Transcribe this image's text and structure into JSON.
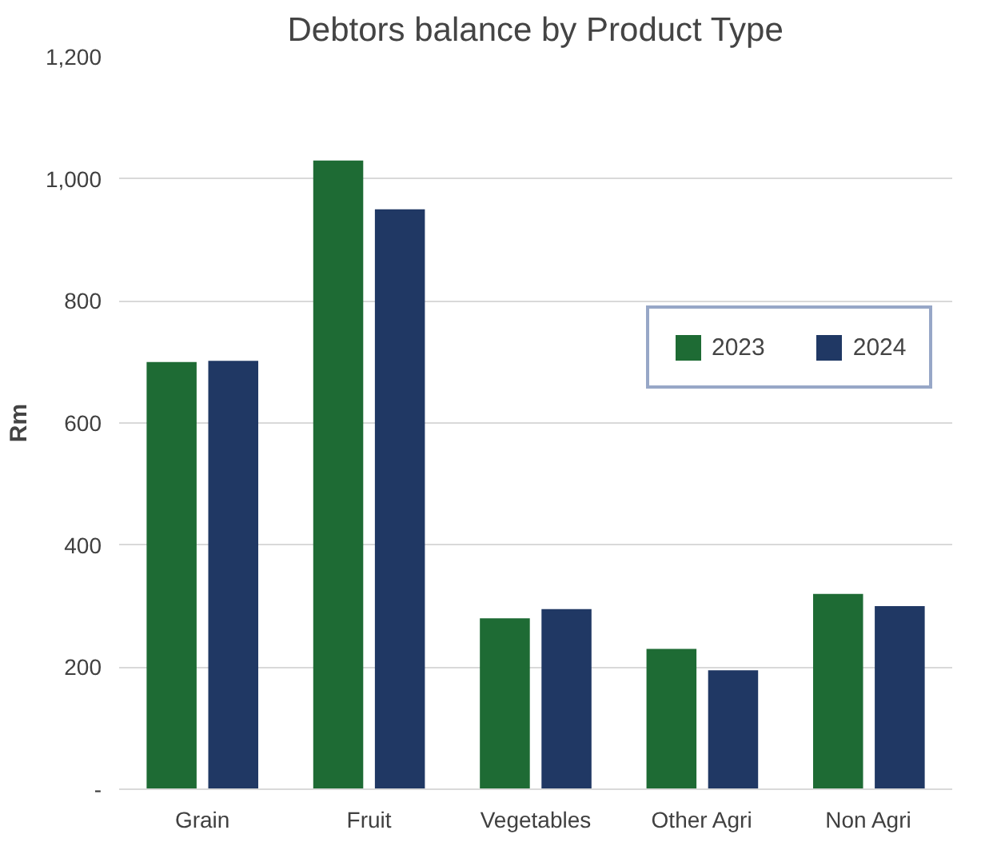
{
  "chart_data": {
    "type": "bar",
    "title": "Debtors balance by Product Type",
    "ylabel": "Rm",
    "categories": [
      "Grain",
      "Fruit",
      "Vegetables",
      "Other Agri",
      "Non Agri"
    ],
    "series": [
      {
        "name": "2023",
        "color": "#1e6b34",
        "values": [
          700,
          1030,
          280,
          230,
          320
        ]
      },
      {
        "name": "2024",
        "color": "#203864",
        "values": [
          702,
          950,
          295,
          195,
          300
        ]
      }
    ],
    "ylim": [
      0,
      1200
    ],
    "yticks": [
      {
        "value": 0,
        "label": "-"
      },
      200,
      400,
      600,
      800,
      {
        "value": 1000,
        "label": "1,000"
      },
      {
        "value": 1200,
        "label": "1,200"
      }
    ],
    "grid": "y",
    "legend": "right"
  }
}
